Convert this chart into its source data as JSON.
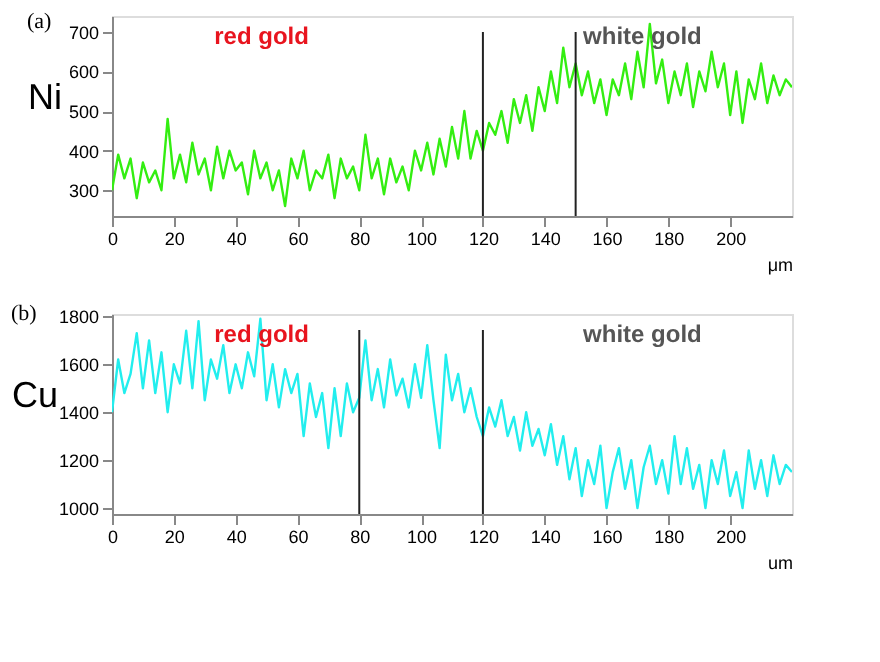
{
  "chart_data": [
    {
      "type": "line",
      "title": "(a)",
      "xlabel": "μm",
      "ylabel": "Ni",
      "grid": false,
      "x": [
        0,
        2,
        4,
        6,
        8,
        10,
        12,
        14,
        16,
        18,
        20,
        22,
        24,
        26,
        28,
        30,
        32,
        34,
        36,
        38,
        40,
        42,
        44,
        46,
        48,
        50,
        52,
        54,
        56,
        58,
        60,
        62,
        64,
        66,
        68,
        70,
        72,
        74,
        76,
        78,
        80,
        82,
        84,
        86,
        88,
        90,
        92,
        94,
        96,
        98,
        100,
        102,
        104,
        106,
        108,
        110,
        112,
        114,
        116,
        118,
        120,
        122,
        124,
        126,
        128,
        130,
        132,
        134,
        136,
        138,
        140,
        142,
        144,
        146,
        148,
        150,
        152,
        154,
        156,
        158,
        160,
        162,
        164,
        166,
        168,
        170,
        172,
        174,
        176,
        178,
        180,
        182,
        184,
        186,
        188,
        190,
        192,
        194,
        196,
        198,
        200,
        202,
        204,
        206,
        208,
        210,
        212,
        214,
        216,
        218,
        220
      ],
      "series": [
        {
          "color": "#33ee11",
          "values": [
            300,
            390,
            330,
            380,
            280,
            370,
            320,
            350,
            300,
            480,
            330,
            390,
            320,
            420,
            340,
            380,
            300,
            410,
            330,
            400,
            350,
            370,
            290,
            400,
            330,
            370,
            300,
            350,
            260,
            380,
            330,
            400,
            300,
            350,
            330,
            390,
            280,
            380,
            330,
            360,
            300,
            440,
            330,
            380,
            290,
            380,
            320,
            360,
            300,
            400,
            350,
            420,
            340,
            430,
            360,
            460,
            380,
            500,
            380,
            450,
            400,
            470,
            440,
            500,
            420,
            530,
            470,
            540,
            450,
            560,
            500,
            600,
            520,
            660,
            560,
            620,
            540,
            600,
            520,
            580,
            490,
            580,
            540,
            620,
            530,
            650,
            560,
            720,
            570,
            630,
            520,
            600,
            540,
            620,
            510,
            600,
            550,
            650,
            560,
            620,
            490,
            600,
            470,
            580,
            530,
            620,
            520,
            590,
            540,
            580,
            560
          ]
        }
      ],
      "xlim": [
        0,
        220
      ],
      "xticks": [
        0,
        20,
        40,
        60,
        80,
        100,
        120,
        140,
        160,
        180,
        200
      ],
      "ylim": [
        235,
        740
      ],
      "yticks": [
        300,
        400,
        500,
        600,
        700
      ],
      "ref_lines": [
        {
          "axis": "x",
          "value": 120
        },
        {
          "axis": "x",
          "value": 150
        }
      ],
      "annotations": [
        "red gold",
        "white gold"
      ]
    },
    {
      "type": "line",
      "title": "(b)",
      "xlabel": "um",
      "ylabel": "Cu",
      "grid": false,
      "x": [
        0,
        2,
        4,
        6,
        8,
        10,
        12,
        14,
        16,
        18,
        20,
        22,
        24,
        26,
        28,
        30,
        32,
        34,
        36,
        38,
        40,
        42,
        44,
        46,
        48,
        50,
        52,
        54,
        56,
        58,
        60,
        62,
        64,
        66,
        68,
        70,
        72,
        74,
        76,
        78,
        80,
        82,
        84,
        86,
        88,
        90,
        92,
        94,
        96,
        98,
        100,
        102,
        104,
        106,
        108,
        110,
        112,
        114,
        116,
        118,
        120,
        122,
        124,
        126,
        128,
        130,
        132,
        134,
        136,
        138,
        140,
        142,
        144,
        146,
        148,
        150,
        152,
        154,
        156,
        158,
        160,
        162,
        164,
        166,
        168,
        170,
        172,
        174,
        176,
        178,
        180,
        182,
        184,
        186,
        188,
        190,
        192,
        194,
        196,
        198,
        200,
        202,
        204,
        206,
        208,
        210,
        212,
        214,
        216,
        218,
        220
      ],
      "series": [
        {
          "color": "#22eeee",
          "values": [
            1400,
            1620,
            1480,
            1560,
            1730,
            1500,
            1700,
            1480,
            1650,
            1400,
            1600,
            1520,
            1740,
            1500,
            1780,
            1450,
            1620,
            1540,
            1680,
            1480,
            1600,
            1500,
            1650,
            1550,
            1790,
            1450,
            1600,
            1420,
            1580,
            1480,
            1560,
            1300,
            1520,
            1380,
            1480,
            1250,
            1500,
            1300,
            1520,
            1400,
            1460,
            1700,
            1450,
            1580,
            1420,
            1620,
            1470,
            1540,
            1420,
            1600,
            1460,
            1680,
            1450,
            1250,
            1640,
            1450,
            1560,
            1400,
            1500,
            1380,
            1300,
            1420,
            1340,
            1450,
            1300,
            1380,
            1240,
            1400,
            1260,
            1330,
            1220,
            1350,
            1180,
            1300,
            1120,
            1250,
            1050,
            1200,
            1100,
            1260,
            1000,
            1150,
            1250,
            1080,
            1200,
            1000,
            1170,
            1260,
            1100,
            1200,
            1060,
            1300,
            1100,
            1250,
            1080,
            1180,
            1000,
            1200,
            1100,
            1240,
            1050,
            1150,
            1000,
            1240,
            1080,
            1200,
            1050,
            1220,
            1100,
            1180,
            1150
          ]
        }
      ],
      "xlim": [
        0,
        220
      ],
      "xticks": [
        0,
        20,
        40,
        60,
        80,
        100,
        120,
        140,
        160,
        180,
        200
      ],
      "ylim": [
        975,
        1810
      ],
      "yticks": [
        1000,
        1200,
        1400,
        1600,
        1800
      ],
      "ref_lines": [
        {
          "axis": "x",
          "value": 80
        },
        {
          "axis": "x",
          "value": 120
        }
      ],
      "annotations": [
        "red gold",
        "white gold"
      ]
    }
  ]
}
